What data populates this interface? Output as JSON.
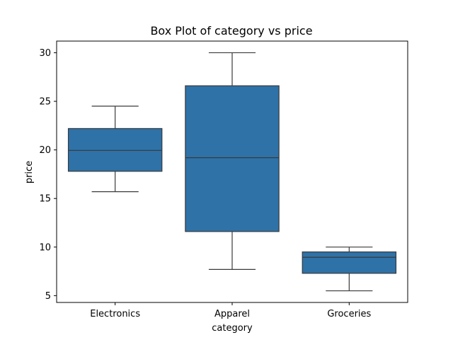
{
  "chart_data": {
    "type": "box",
    "title": "Box Plot of category vs price",
    "xlabel": "category",
    "ylabel": "price",
    "ylim": [
      4.3,
      31.2
    ],
    "yticks": [
      5,
      10,
      15,
      20,
      25,
      30
    ],
    "grid": false,
    "legend": "none",
    "box_color": "#2e72a8",
    "line_color": "#3a3a3a",
    "categories": [
      "Electronics",
      "Apparel",
      "Groceries"
    ],
    "boxes": [
      {
        "category": "Electronics",
        "whisker_low": 15.7,
        "q1": 17.8,
        "median": 19.95,
        "q3": 22.2,
        "whisker_high": 24.5
      },
      {
        "category": "Apparel",
        "whisker_low": 7.7,
        "q1": 11.6,
        "median": 19.2,
        "q3": 26.6,
        "whisker_high": 30.0
      },
      {
        "category": "Groceries",
        "whisker_low": 5.5,
        "q1": 7.3,
        "median": 8.95,
        "q3": 9.5,
        "whisker_high": 10.0
      }
    ]
  }
}
